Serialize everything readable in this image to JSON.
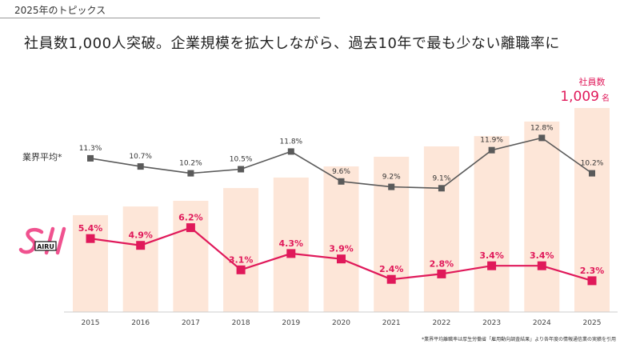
{
  "header": {
    "topic": "2025年のトピックス",
    "headline": "社員数1,000人突破。企業規模を拡大しながら、過去10年で最も少ない離職率に"
  },
  "logo": {
    "text": "AIRU",
    "color": "#f0528f"
  },
  "footnote": "*業界平均離職率は厚生労働省「雇用動向調査結果」より各年度の情報通信業の実績を引用",
  "chart_data": {
    "type": "bar+line",
    "categories": [
      "2015",
      "2016",
      "2017",
      "2018",
      "2019",
      "2020",
      "2021",
      "2022",
      "2023",
      "2024",
      "2025"
    ],
    "bars": {
      "values": [
        479,
        522,
        550,
        613,
        665,
        720,
        768,
        819,
        870,
        942,
        1009
      ],
      "color": "#fde6d8",
      "label_title": "社員数",
      "label_value": "1,009",
      "label_unit": "名"
    },
    "series": [
      {
        "name": "業界平均*",
        "values": [
          11.3,
          10.7,
          10.2,
          10.5,
          11.8,
          9.6,
          9.2,
          9.1,
          11.9,
          12.8,
          10.2
        ],
        "labels": [
          "11.3%",
          "10.7%",
          "10.2%",
          "10.5%",
          "11.8%",
          "9.6%",
          "9.2%",
          "9.1%",
          "11.9%",
          "12.8%",
          "10.2%"
        ],
        "color": "#5a5a5a"
      },
      {
        "values": [
          5.4,
          4.9,
          6.2,
          3.1,
          4.3,
          3.9,
          2.4,
          2.8,
          3.4,
          3.4,
          2.3
        ],
        "labels": [
          "5.4%",
          "4.9%",
          "6.2%",
          "3.1%",
          "4.3%",
          "3.9%",
          "2.4%",
          "2.8%",
          "3.4%",
          "3.4%",
          "2.3%"
        ],
        "color": "#e0195a"
      }
    ],
    "grid": false
  }
}
